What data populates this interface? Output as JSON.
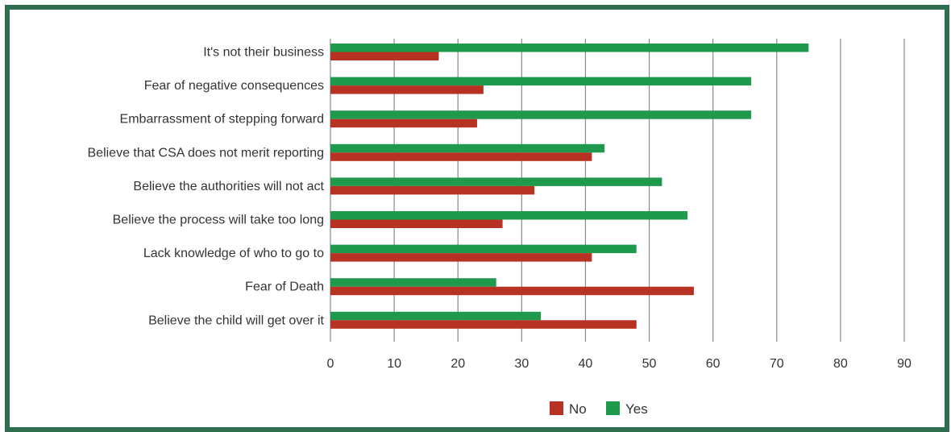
{
  "chart_data": {
    "type": "bar",
    "orientation": "horizontal",
    "categories": [
      "It's not their business",
      "Fear of negative consequences",
      "Embarrassment of stepping forward",
      "Believe that CSA does not merit reporting",
      "Believe the authorities will not act",
      "Believe the process will take too long",
      "Lack knowledge of who to go to",
      "Fear of Death",
      "Believe the child will get over it"
    ],
    "series": [
      {
        "name": "Yes",
        "color": "#1f9a4c",
        "values": [
          75,
          66,
          66,
          43,
          52,
          56,
          48,
          26,
          33
        ]
      },
      {
        "name": "No",
        "color": "#b83224",
        "values": [
          17,
          24,
          23,
          41,
          32,
          27,
          41,
          57,
          48
        ]
      }
    ],
    "xlim": [
      0,
      90
    ],
    "xticks": [
      0,
      10,
      20,
      30,
      40,
      50,
      60,
      70,
      80,
      90
    ],
    "grid": true,
    "legend": {
      "position": "bottom",
      "order": [
        "No",
        "Yes"
      ]
    }
  }
}
